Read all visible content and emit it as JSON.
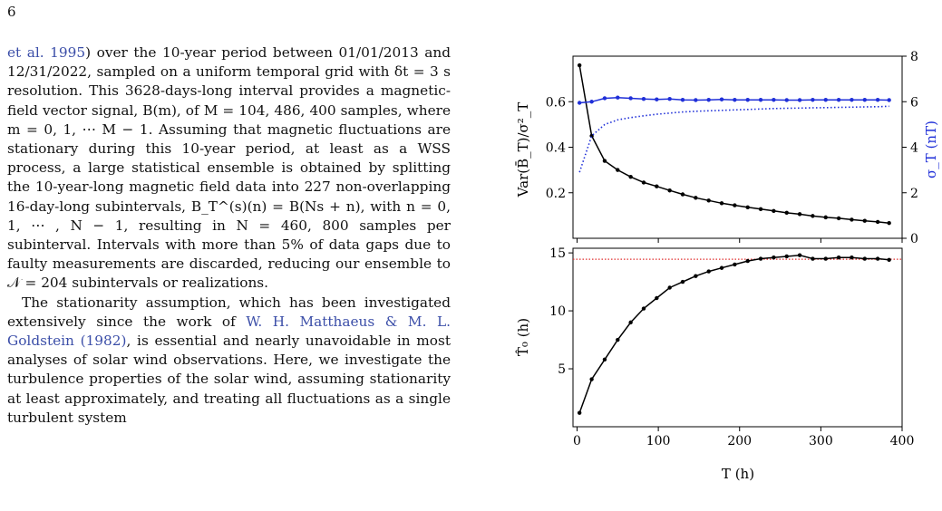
{
  "page": {
    "number": "6"
  },
  "text": {
    "paragraph1": {
      "citation_start": "et al. 1995",
      "body": ") over the 10-year period between 01/01/2013 and 12/31/2022, sampled on a uniform temporal grid with δt = 3 s resolution. This 3628-days-long interval provides a magnetic-field vector signal, B(m), of M = 104, 486, 400 samples, where m = 0, 1, ⋯ M − 1. Assuming that magnetic fluctuations are stationary during this 10-year period, at least as a WSS process, a large statistical ensemble is obtained by splitting the 10-year-long magnetic field data into 227 non-overlapping 16-day-long subintervals, B_T^(s)(n) = B(Ns + n), with n = 0, 1, ⋯ , N − 1, resulting in N = 460, 800 samples per subinterval. Intervals with more than 5% of data gaps due to faulty measurements are discarded, reducing our ensemble to 𝒩 = 204 subintervals or realizations."
    },
    "paragraph2": {
      "before": "The stationarity assumption, which has been investigated extensively since the work of ",
      "citation": "W. H. Matthaeus & M. L. Goldstein (1982)",
      "after": ", is essential and nearly unavoidable in most analyses of solar wind observations. Here, we investigate the turbulence properties of the solar wind, assuming stationarity at least approximately, and treating all fluctuations as a single turbulent system"
    }
  },
  "colors": {
    "citation": "#3b4ea8",
    "black_series": "#000000",
    "blue_series": "#1f2fd8",
    "reference_line": "#e03030"
  },
  "chart_data": [
    {
      "type": "line",
      "panel": "top",
      "title": "",
      "xlabel": "",
      "ylabel": "Var(B̄_T)/σ²_T",
      "ylabel_right": "σ_T (nT)",
      "xlim": [
        -5,
        400
      ],
      "ylim": [
        0.0,
        0.8
      ],
      "ylim_right": [
        0,
        8
      ],
      "yticks": [
        0.2,
        0.4,
        0.6
      ],
      "yticks_right": [
        0,
        2,
        4,
        6,
        8
      ],
      "x": [
        3,
        18,
        34,
        50,
        66,
        82,
        98,
        114,
        130,
        146,
        162,
        178,
        194,
        210,
        226,
        242,
        258,
        274,
        290,
        306,
        322,
        338,
        354,
        370,
        384
      ],
      "series": [
        {
          "axis": "left",
          "style": "solid-markers",
          "color": "#000000",
          "values": [
            0.76,
            0.45,
            0.34,
            0.3,
            0.27,
            0.245,
            0.228,
            0.21,
            0.193,
            0.178,
            0.166,
            0.154,
            0.145,
            0.136,
            0.128,
            0.12,
            0.112,
            0.106,
            0.098,
            0.092,
            0.088,
            0.082,
            0.077,
            0.072,
            0.067
          ]
        },
        {
          "axis": "right",
          "style": "solid-markers",
          "color": "#1f2fd8",
          "values": [
            5.95,
            6.0,
            6.15,
            6.18,
            6.15,
            6.12,
            6.1,
            6.12,
            6.08,
            6.07,
            6.08,
            6.1,
            6.08,
            6.08,
            6.08,
            6.08,
            6.07,
            6.07,
            6.08,
            6.08,
            6.08,
            6.08,
            6.08,
            6.08,
            6.07
          ]
        },
        {
          "axis": "right",
          "style": "dotted",
          "color": "#1f2fd8",
          "values": [
            2.9,
            4.5,
            5.0,
            5.2,
            5.3,
            5.38,
            5.45,
            5.5,
            5.55,
            5.58,
            5.6,
            5.62,
            5.64,
            5.66,
            5.68,
            5.7,
            5.71,
            5.72,
            5.73,
            5.74,
            5.75,
            5.76,
            5.77,
            5.78,
            5.8
          ]
        }
      ]
    },
    {
      "type": "line",
      "panel": "bottom",
      "title": "",
      "xlabel": "T (h)",
      "ylabel": "T̂₀ (h)",
      "xlim": [
        -5,
        400
      ],
      "ylim": [
        0,
        15.4
      ],
      "xticks": [
        0,
        100,
        200,
        300,
        400
      ],
      "yticks": [
        5,
        10,
        15
      ],
      "x": [
        3,
        18,
        34,
        50,
        66,
        82,
        98,
        114,
        130,
        146,
        162,
        178,
        194,
        210,
        226,
        242,
        258,
        274,
        290,
        306,
        322,
        338,
        354,
        370,
        384
      ],
      "series": [
        {
          "style": "solid-markers",
          "color": "#000000",
          "values": [
            1.2,
            4.1,
            5.8,
            7.5,
            9.0,
            10.2,
            11.1,
            12.0,
            12.5,
            13.0,
            13.4,
            13.7,
            14.0,
            14.3,
            14.5,
            14.6,
            14.7,
            14.8,
            14.5,
            14.5,
            14.6,
            14.6,
            14.5,
            14.5,
            14.4
          ]
        }
      ],
      "reference_lines": [
        {
          "orientation": "horizontal",
          "y": 14.45,
          "color": "#e03030",
          "style": "dotted"
        }
      ]
    }
  ]
}
